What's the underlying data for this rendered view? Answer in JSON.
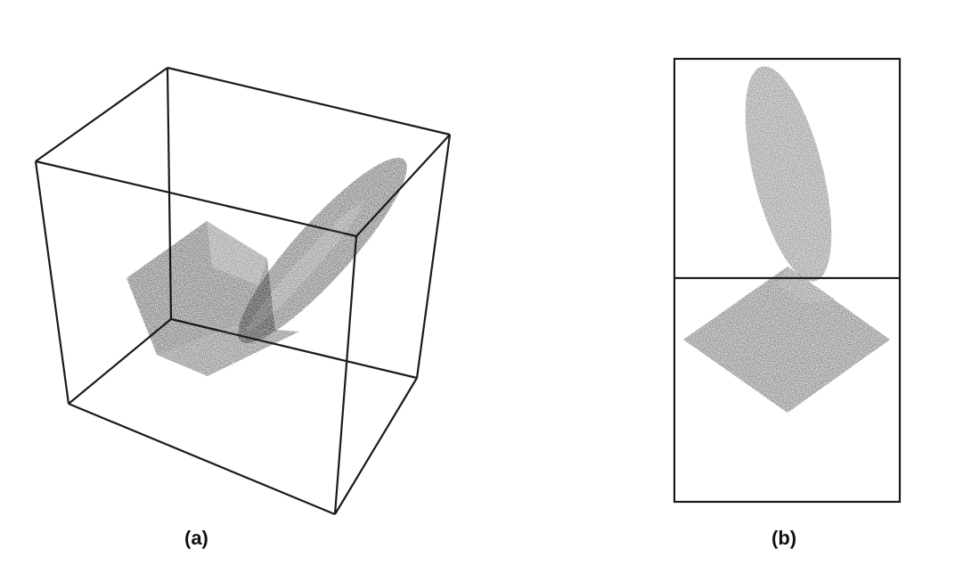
{
  "panels": [
    {
      "id": "a",
      "label": "(a)"
    },
    {
      "id": "b",
      "label": "(b)"
    }
  ],
  "colors": {
    "background": "#ffffff",
    "frame": "#1a1a1a",
    "shape_dark": "#141414",
    "shape_mid": "#2c2c2c",
    "shape_gray": "#4e4e4e"
  }
}
